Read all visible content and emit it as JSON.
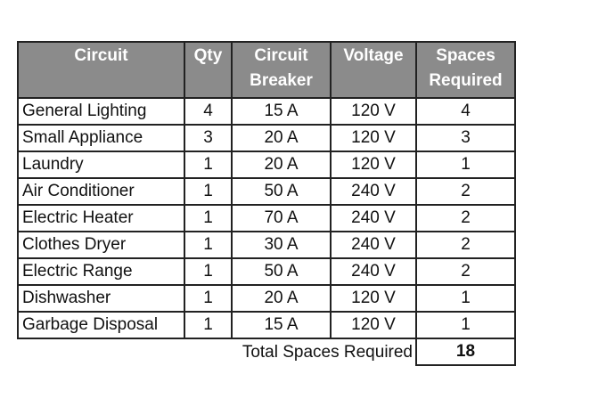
{
  "header_color": "#8b8b8b",
  "columns": [
    "Circuit",
    "Qty",
    "Circuit Breaker",
    "Voltage",
    "Spaces Required"
  ],
  "rows": [
    [
      "General Lighting",
      "4",
      "15 A",
      "120 V",
      "4"
    ],
    [
      "Small Appliance",
      "3",
      "20 A",
      "120 V",
      "3"
    ],
    [
      "Laundry",
      "1",
      "20 A",
      "120 V",
      "1"
    ],
    [
      "Air Conditioner",
      "1",
      "50 A",
      "240 V",
      "2"
    ],
    [
      "Electric Heater",
      "1",
      "70 A",
      "240 V",
      "2"
    ],
    [
      "Clothes Dryer",
      "1",
      "30 A",
      "240 V",
      "2"
    ],
    [
      "Electric Range",
      "1",
      "50 A",
      "240 V",
      "2"
    ],
    [
      "Dishwasher",
      "1",
      "20 A",
      "120 V",
      "1"
    ],
    [
      "Garbage Disposal",
      "1",
      "15 A",
      "120 V",
      "1"
    ]
  ],
  "total": {
    "label": "Total Spaces Required",
    "value": "18"
  }
}
